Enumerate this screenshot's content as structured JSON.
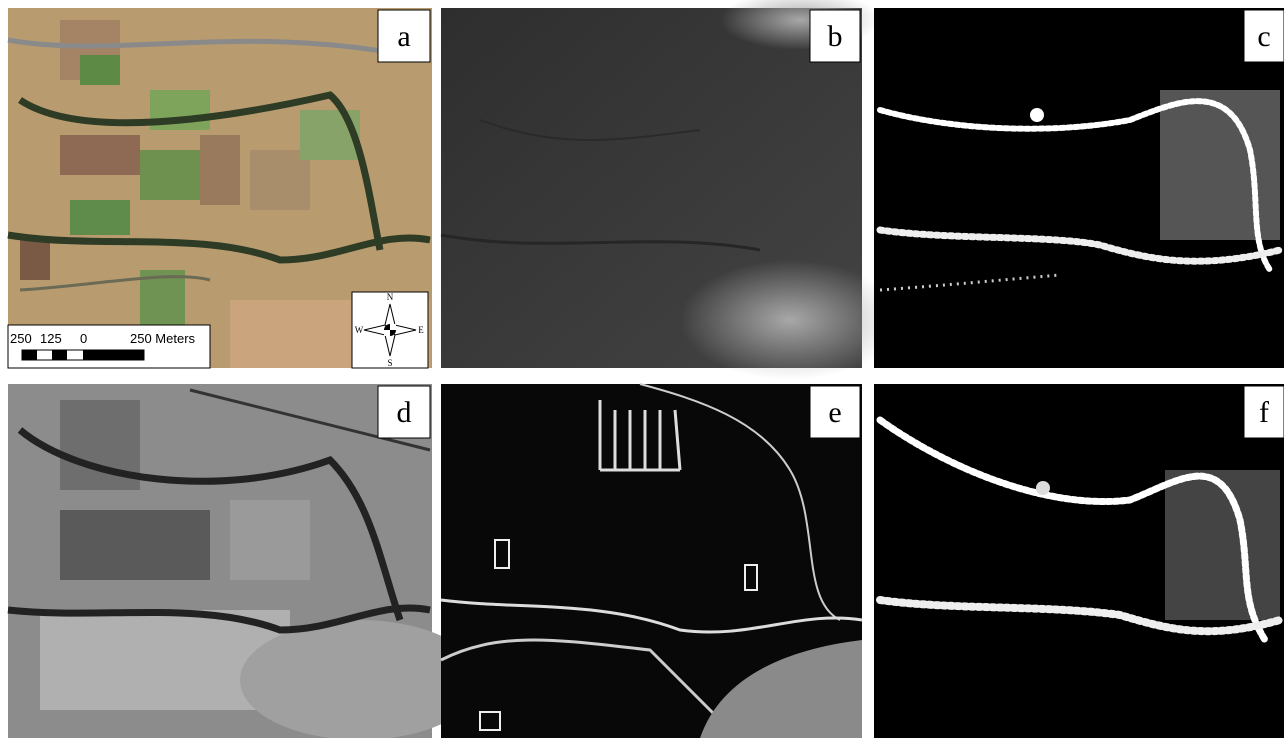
{
  "panels": [
    {
      "label": "a"
    },
    {
      "label": "b"
    },
    {
      "label": "c"
    },
    {
      "label": "d"
    },
    {
      "label": "e"
    },
    {
      "label": "f"
    }
  ],
  "scale_bar": {
    "labels": [
      "250",
      "125",
      "0",
      "250 Meters"
    ]
  },
  "compass": {
    "n": "N",
    "s": "S",
    "e": "E",
    "w": "W"
  }
}
